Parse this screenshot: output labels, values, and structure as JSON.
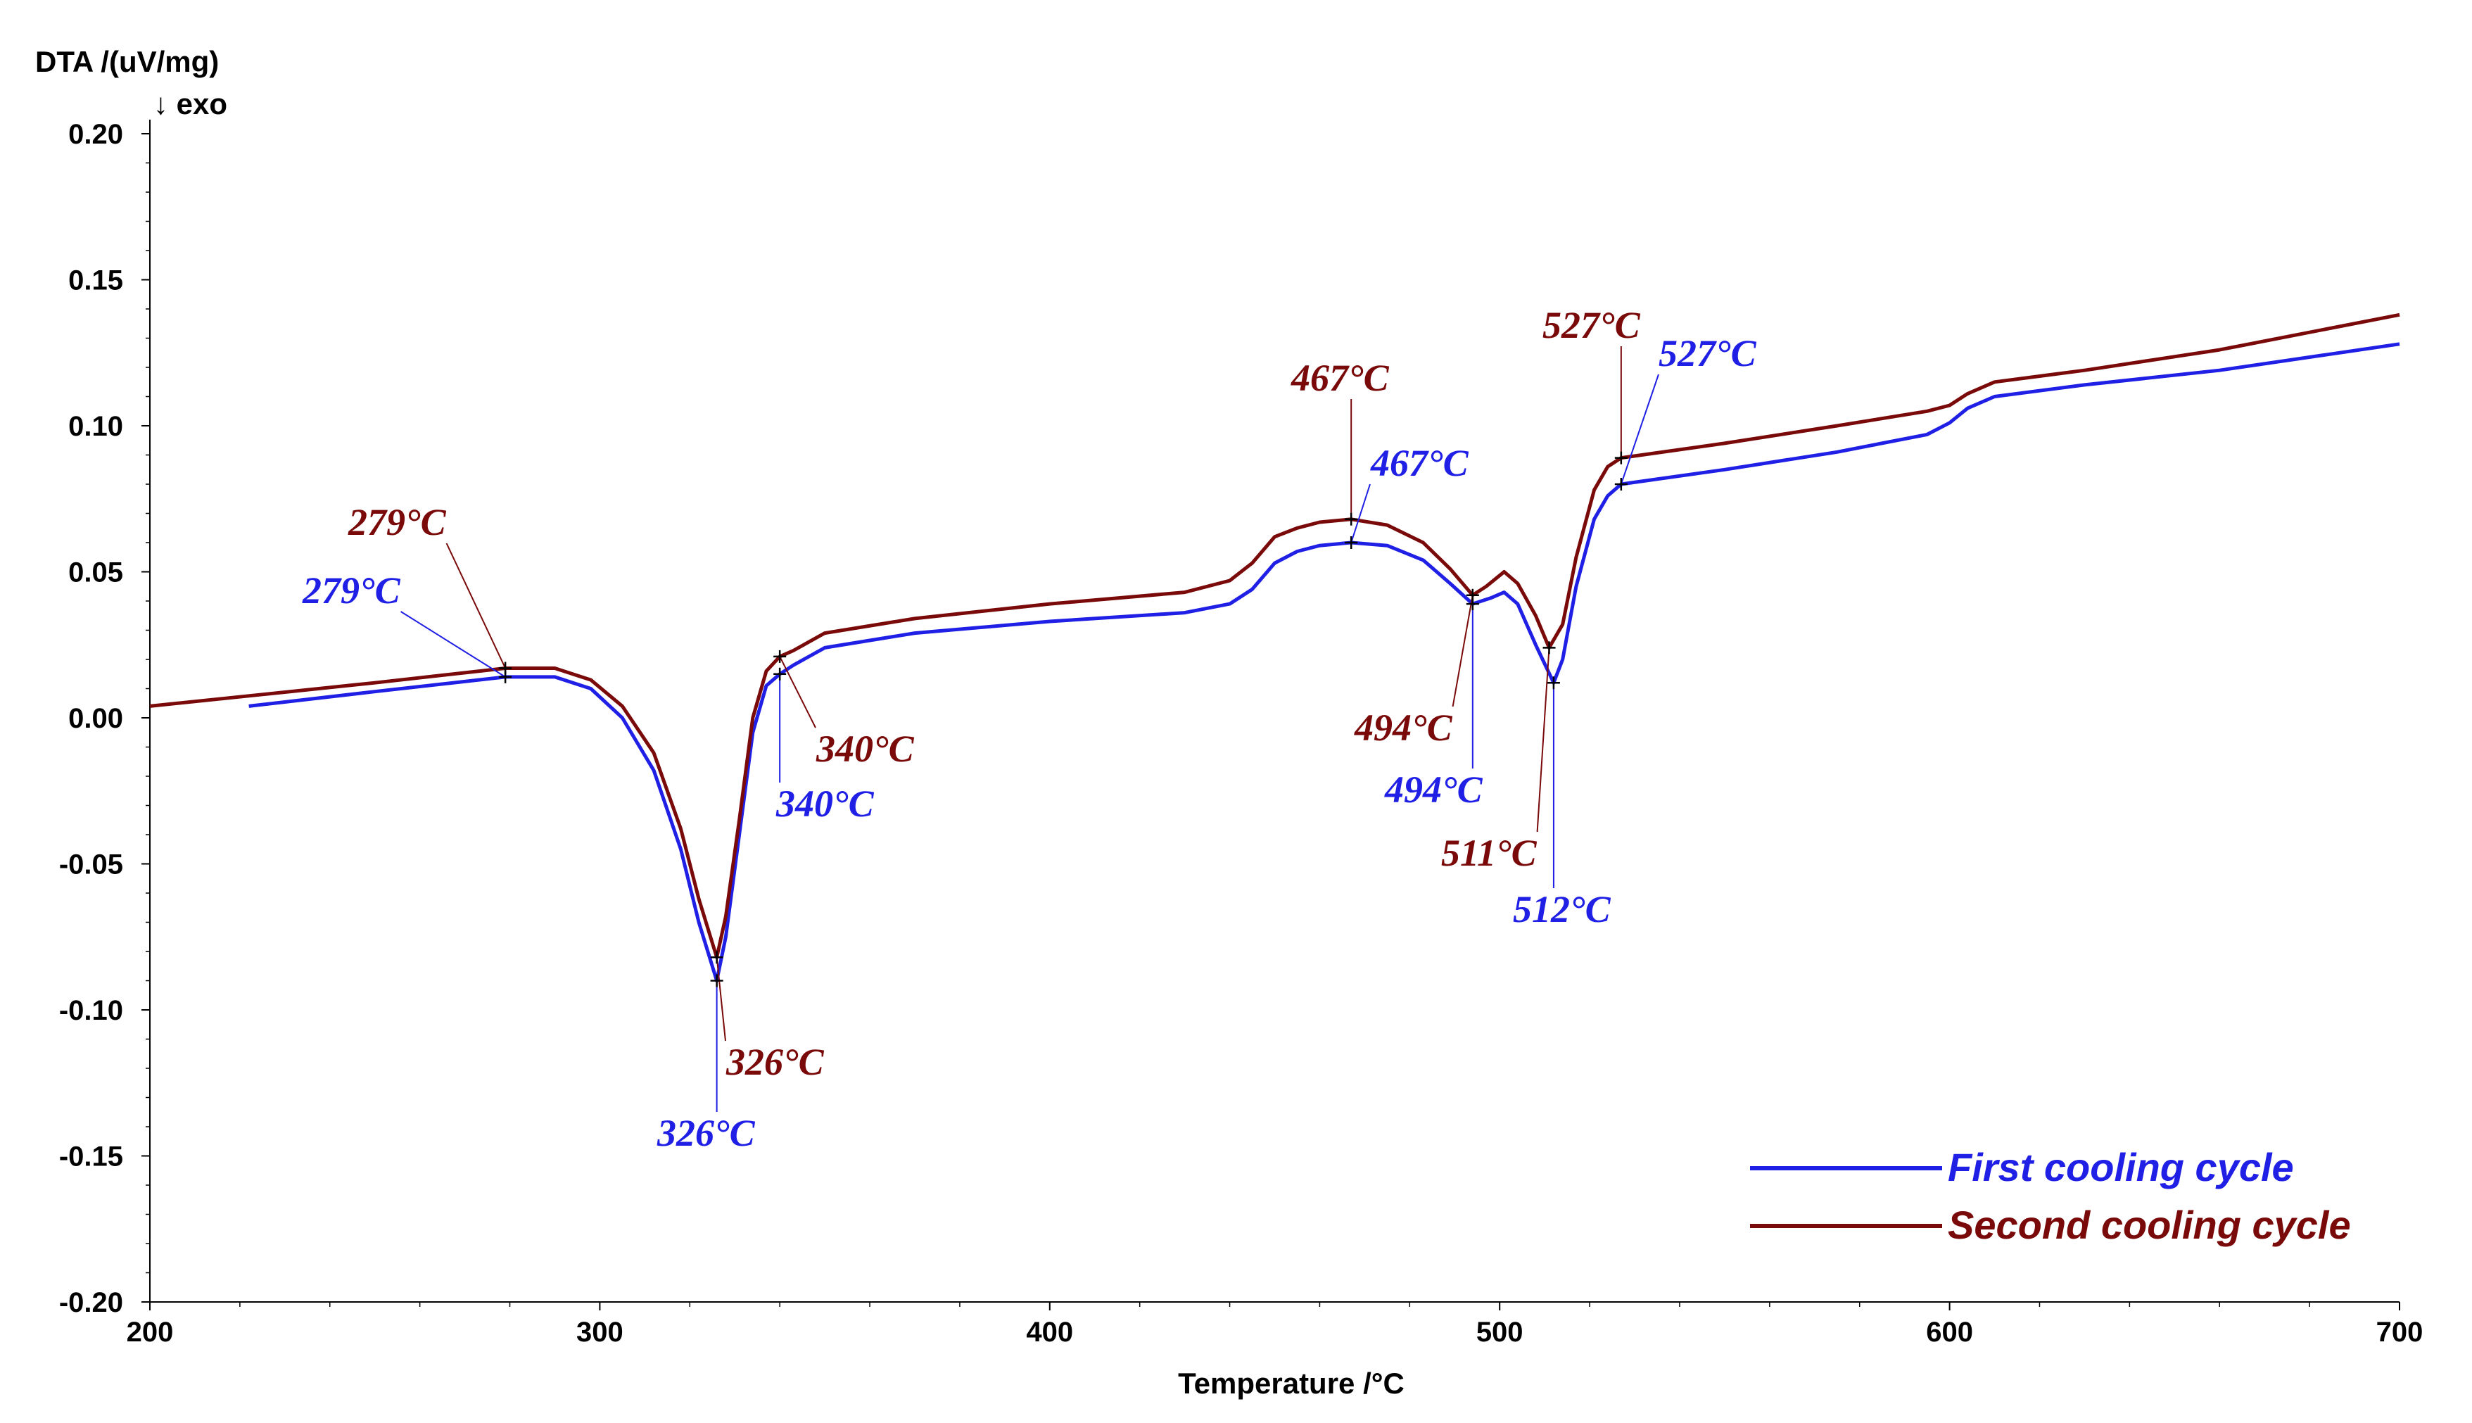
{
  "chart_data": {
    "type": "line",
    "title": "",
    "xlabel": "Temperature /°C",
    "ylabel": "DTA /(uV/mg)",
    "ylabel_note": "↓ exo",
    "xlim": [
      200,
      700
    ],
    "ylim": [
      -0.2,
      0.2
    ],
    "x_ticks": [
      200,
      300,
      400,
      500,
      600,
      700
    ],
    "x_tick_labels": [
      "200",
      "300",
      "400",
      "500",
      "600",
      "700"
    ],
    "y_ticks": [
      0.2,
      0.15,
      0.1,
      0.05,
      0.0,
      -0.05,
      -0.1,
      -0.15,
      -0.2
    ],
    "y_tick_labels": [
      "0.20",
      "0.15",
      "0.10",
      "0.05",
      "0.00",
      "-0.05",
      "-0.10",
      "-0.15",
      "-0.20"
    ],
    "grid": false,
    "legend_position": "bottom-right",
    "series": [
      {
        "name": "First cooling cycle",
        "color": "#1f1fe6",
        "points": [
          [
            222,
            0.004
          ],
          [
            250,
            0.009
          ],
          [
            279,
            0.014
          ],
          [
            290,
            0.014
          ],
          [
            298,
            0.01
          ],
          [
            305,
            0.0
          ],
          [
            312,
            -0.018
          ],
          [
            318,
            -0.045
          ],
          [
            322,
            -0.07
          ],
          [
            326,
            -0.09
          ],
          [
            328,
            -0.075
          ],
          [
            331,
            -0.04
          ],
          [
            334,
            -0.005
          ],
          [
            337,
            0.011
          ],
          [
            340,
            0.015
          ],
          [
            343,
            0.018
          ],
          [
            350,
            0.024
          ],
          [
            370,
            0.029
          ],
          [
            400,
            0.033
          ],
          [
            430,
            0.036
          ],
          [
            440,
            0.039
          ],
          [
            445,
            0.044
          ],
          [
            450,
            0.053
          ],
          [
            455,
            0.057
          ],
          [
            460,
            0.059
          ],
          [
            467,
            0.06
          ],
          [
            475,
            0.059
          ],
          [
            483,
            0.054
          ],
          [
            489,
            0.046
          ],
          [
            494,
            0.039
          ],
          [
            498,
            0.041
          ],
          [
            501,
            0.043
          ],
          [
            504,
            0.039
          ],
          [
            508,
            0.025
          ],
          [
            512,
            0.012
          ],
          [
            514,
            0.02
          ],
          [
            517,
            0.045
          ],
          [
            521,
            0.068
          ],
          [
            524,
            0.076
          ],
          [
            527,
            0.08
          ],
          [
            550,
            0.085
          ],
          [
            575,
            0.091
          ],
          [
            595,
            0.097
          ],
          [
            600,
            0.101
          ],
          [
            604,
            0.106
          ],
          [
            610,
            0.11
          ],
          [
            630,
            0.114
          ],
          [
            660,
            0.119
          ],
          [
            700,
            0.128
          ]
        ]
      },
      {
        "name": "Second cooling cycle",
        "color": "#7a0a0a",
        "points": [
          [
            200,
            0.004
          ],
          [
            225,
            0.008
          ],
          [
            250,
            0.012
          ],
          [
            279,
            0.017
          ],
          [
            290,
            0.017
          ],
          [
            298,
            0.013
          ],
          [
            305,
            0.004
          ],
          [
            312,
            -0.012
          ],
          [
            318,
            -0.038
          ],
          [
            322,
            -0.062
          ],
          [
            326,
            -0.082
          ],
          [
            328,
            -0.068
          ],
          [
            331,
            -0.035
          ],
          [
            334,
            0.0
          ],
          [
            337,
            0.016
          ],
          [
            340,
            0.021
          ],
          [
            343,
            0.023
          ],
          [
            350,
            0.029
          ],
          [
            370,
            0.034
          ],
          [
            400,
            0.039
          ],
          [
            430,
            0.043
          ],
          [
            440,
            0.047
          ],
          [
            445,
            0.053
          ],
          [
            450,
            0.062
          ],
          [
            455,
            0.065
          ],
          [
            460,
            0.067
          ],
          [
            467,
            0.068
          ],
          [
            475,
            0.066
          ],
          [
            483,
            0.06
          ],
          [
            489,
            0.051
          ],
          [
            494,
            0.042
          ],
          [
            497,
            0.045
          ],
          [
            501,
            0.05
          ],
          [
            504,
            0.046
          ],
          [
            508,
            0.035
          ],
          [
            511,
            0.024
          ],
          [
            514,
            0.032
          ],
          [
            517,
            0.055
          ],
          [
            521,
            0.078
          ],
          [
            524,
            0.086
          ],
          [
            527,
            0.089
          ],
          [
            550,
            0.094
          ],
          [
            575,
            0.1
          ],
          [
            595,
            0.105
          ],
          [
            600,
            0.107
          ],
          [
            604,
            0.111
          ],
          [
            610,
            0.115
          ],
          [
            630,
            0.119
          ],
          [
            660,
            0.126
          ],
          [
            700,
            0.138
          ]
        ]
      }
    ],
    "annotations": [
      {
        "text": "279°C",
        "series": "Second cooling cycle",
        "x": 279,
        "y": 0.017
      },
      {
        "text": "279°C",
        "series": "First cooling cycle",
        "x": 279,
        "y": 0.014
      },
      {
        "text": "326°C",
        "series": "Second cooling cycle",
        "x": 326,
        "y": -0.082
      },
      {
        "text": "326°C",
        "series": "First cooling cycle",
        "x": 326,
        "y": -0.09
      },
      {
        "text": "340°C",
        "series": "Second cooling cycle",
        "x": 340,
        "y": 0.021
      },
      {
        "text": "340°C",
        "series": "First cooling cycle",
        "x": 340,
        "y": 0.015
      },
      {
        "text": "467°C",
        "series": "Second cooling cycle",
        "x": 467,
        "y": 0.068
      },
      {
        "text": "467°C",
        "series": "First cooling cycle",
        "x": 467,
        "y": 0.06
      },
      {
        "text": "494°C",
        "series": "Second cooling cycle",
        "x": 494,
        "y": 0.042
      },
      {
        "text": "494°C",
        "series": "First cooling cycle",
        "x": 494,
        "y": 0.039
      },
      {
        "text": "511°C",
        "series": "Second cooling cycle",
        "x": 511,
        "y": 0.024
      },
      {
        "text": "512°C",
        "series": "First cooling cycle",
        "x": 512,
        "y": 0.012
      },
      {
        "text": "527°C",
        "series": "Second cooling cycle",
        "x": 527,
        "y": 0.089
      },
      {
        "text": "527°C",
        "series": "First cooling cycle",
        "x": 527,
        "y": 0.08
      }
    ]
  }
}
